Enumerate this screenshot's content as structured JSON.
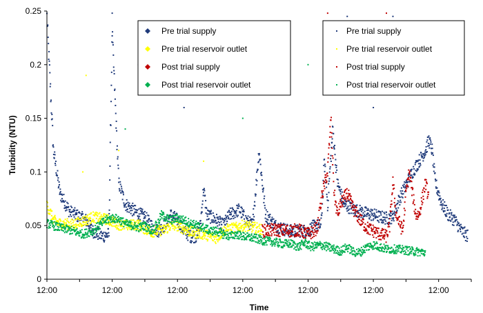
{
  "chart_data": {
    "type": "scatter",
    "title": "",
    "xlabel": "Time",
    "ylabel": "Turbidity (NTU)",
    "x_ticks": [
      "12:00",
      "12:00",
      "12:00",
      "12:00",
      "12:00",
      "12:00",
      "12:00"
    ],
    "x_range_days": [
      0,
      6.5
    ],
    "ylim": [
      0,
      0.25
    ],
    "y_ticks": [
      0,
      0.05,
      0.1,
      0.15,
      0.2,
      0.25
    ],
    "grid": false,
    "legends": [
      {
        "placement": "top-center",
        "marker": "diamond",
        "entries": [
          "Pre trial supply",
          "Pre trial reservoir outlet",
          "Post trial supply",
          "Post trial reservoir outlet"
        ]
      },
      {
        "placement": "top-right",
        "marker": "dot",
        "entries": [
          "Pre trial supply",
          "Pre trial reservoir outlet",
          "Post trial supply",
          "Post trial reservoir outlet"
        ]
      }
    ],
    "series": [
      {
        "name": "Pre trial supply",
        "color": "#1f3a7a",
        "spread": 0.006,
        "points": [
          [
            0,
            0.245
          ],
          [
            0.1,
            0.12
          ],
          [
            0.2,
            0.08
          ],
          [
            0.35,
            0.063
          ],
          [
            0.5,
            0.058
          ],
          [
            0.6,
            0.055
          ],
          [
            0.7,
            0.045
          ],
          [
            0.85,
            0.04
          ],
          [
            0.95,
            0.042
          ],
          [
            0.97,
            0.12
          ],
          [
            1.0,
            0.23
          ],
          [
            1.05,
            0.16
          ],
          [
            1.1,
            0.09
          ],
          [
            1.2,
            0.07
          ],
          [
            1.35,
            0.063
          ],
          [
            1.5,
            0.058
          ],
          [
            1.6,
            0.05
          ],
          [
            1.7,
            0.045
          ],
          [
            1.8,
            0.05
          ],
          [
            1.9,
            0.06
          ],
          [
            2.0,
            0.055
          ],
          [
            2.1,
            0.045
          ],
          [
            2.2,
            0.04
          ],
          [
            2.3,
            0.04
          ],
          [
            2.35,
            0.05
          ],
          [
            2.4,
            0.085
          ],
          [
            2.45,
            0.06
          ],
          [
            2.6,
            0.055
          ],
          [
            2.7,
            0.05
          ],
          [
            2.8,
            0.06
          ],
          [
            2.95,
            0.065
          ],
          [
            3.05,
            0.055
          ],
          [
            3.15,
            0.05
          ],
          [
            3.25,
            0.12
          ],
          [
            3.35,
            0.06
          ],
          [
            3.5,
            0.05
          ],
          [
            3.7,
            0.045
          ],
          [
            3.85,
            0.045
          ],
          [
            4.0,
            0.045
          ],
          [
            4.1,
            0.05
          ],
          [
            4.2,
            0.05
          ],
          [
            4.25,
            0.11
          ],
          [
            4.3,
            0.07
          ],
          [
            4.38,
            0.14
          ],
          [
            4.45,
            0.09
          ],
          [
            4.55,
            0.07
          ],
          [
            4.7,
            0.065
          ],
          [
            4.85,
            0.062
          ],
          [
            5.0,
            0.06
          ],
          [
            5.1,
            0.058
          ],
          [
            5.2,
            0.057
          ],
          [
            5.3,
            0.058
          ],
          [
            5.4,
            0.075
          ],
          [
            5.5,
            0.088
          ],
          [
            5.6,
            0.1
          ],
          [
            5.7,
            0.11
          ],
          [
            5.8,
            0.12
          ],
          [
            5.85,
            0.13
          ],
          [
            5.9,
            0.12
          ],
          [
            5.95,
            0.09
          ],
          [
            6.05,
            0.07
          ],
          [
            6.15,
            0.06
          ],
          [
            6.25,
            0.055
          ],
          [
            6.35,
            0.045
          ],
          [
            6.45,
            0.04
          ]
        ]
      },
      {
        "name": "Pre trial reservoir outlet",
        "color": "#ffff00",
        "spread": 0.005,
        "points": [
          [
            0,
            0.07
          ],
          [
            0.1,
            0.055
          ],
          [
            0.2,
            0.052
          ],
          [
            0.4,
            0.051
          ],
          [
            0.6,
            0.055
          ],
          [
            0.7,
            0.058
          ],
          [
            0.9,
            0.056
          ],
          [
            1.0,
            0.054
          ],
          [
            1.1,
            0.051
          ],
          [
            1.2,
            0.05
          ],
          [
            1.4,
            0.051
          ],
          [
            1.5,
            0.047
          ],
          [
            1.6,
            0.044
          ],
          [
            1.7,
            0.045
          ],
          [
            1.8,
            0.046
          ],
          [
            1.9,
            0.05
          ],
          [
            2.0,
            0.05
          ],
          [
            2.1,
            0.047
          ],
          [
            2.2,
            0.044
          ],
          [
            2.3,
            0.043
          ],
          [
            2.4,
            0.042
          ],
          [
            2.5,
            0.04
          ],
          [
            2.6,
            0.038
          ],
          [
            2.7,
            0.045
          ],
          [
            2.8,
            0.047
          ],
          [
            2.9,
            0.048
          ],
          [
            3.0,
            0.05
          ],
          [
            3.1,
            0.049
          ],
          [
            3.2,
            0.048
          ],
          [
            3.3,
            0.046
          ]
        ]
      },
      {
        "name": "Post trial supply",
        "color": "#c00000",
        "spread": 0.006,
        "points": [
          [
            3.3,
            0.045
          ],
          [
            3.5,
            0.046
          ],
          [
            3.7,
            0.045
          ],
          [
            3.85,
            0.046
          ],
          [
            4.0,
            0.042
          ],
          [
            4.1,
            0.045
          ],
          [
            4.15,
            0.05
          ],
          [
            4.22,
            0.08
          ],
          [
            4.3,
            0.1
          ],
          [
            4.35,
            0.15
          ],
          [
            4.4,
            0.08
          ],
          [
            4.45,
            0.06
          ],
          [
            4.5,
            0.07
          ],
          [
            4.6,
            0.08
          ],
          [
            4.7,
            0.065
          ],
          [
            4.8,
            0.055
          ],
          [
            4.9,
            0.048
          ],
          [
            5.0,
            0.045
          ],
          [
            5.1,
            0.042
          ],
          [
            5.2,
            0.04
          ],
          [
            5.25,
            0.05
          ],
          [
            5.3,
            0.09
          ],
          [
            5.35,
            0.06
          ],
          [
            5.45,
            0.045
          ],
          [
            5.5,
            0.08
          ],
          [
            5.55,
            0.1
          ],
          [
            5.6,
            0.08
          ],
          [
            5.65,
            0.06
          ],
          [
            5.7,
            0.06
          ],
          [
            5.75,
            0.075
          ],
          [
            5.8,
            0.09
          ],
          [
            5.85,
            0.075
          ]
        ]
      },
      {
        "name": "Post trial reservoir outlet",
        "color": "#00b050",
        "spread": 0.004,
        "points": [
          [
            0,
            0.052
          ],
          [
            0.2,
            0.048
          ],
          [
            0.4,
            0.045
          ],
          [
            0.55,
            0.042
          ],
          [
            0.7,
            0.045
          ],
          [
            0.8,
            0.05
          ],
          [
            0.9,
            0.055
          ],
          [
            1.0,
            0.057
          ],
          [
            1.1,
            0.056
          ],
          [
            1.2,
            0.052
          ],
          [
            1.3,
            0.05
          ],
          [
            1.4,
            0.048
          ],
          [
            1.5,
            0.05
          ],
          [
            1.6,
            0.045
          ],
          [
            1.7,
            0.052
          ],
          [
            1.75,
            0.06
          ],
          [
            1.8,
            0.058
          ],
          [
            1.9,
            0.055
          ],
          [
            2.0,
            0.057
          ],
          [
            2.1,
            0.055
          ],
          [
            2.2,
            0.052
          ],
          [
            2.3,
            0.05
          ],
          [
            2.4,
            0.048
          ],
          [
            2.5,
            0.045
          ],
          [
            2.6,
            0.045
          ],
          [
            2.7,
            0.042
          ],
          [
            2.8,
            0.04
          ],
          [
            2.9,
            0.042
          ],
          [
            3.0,
            0.04
          ],
          [
            3.1,
            0.039
          ],
          [
            3.2,
            0.038
          ],
          [
            3.3,
            0.036
          ],
          [
            3.45,
            0.035
          ],
          [
            3.6,
            0.033
          ],
          [
            3.75,
            0.033
          ],
          [
            3.85,
            0.03
          ],
          [
            3.95,
            0.034
          ],
          [
            4.05,
            0.03
          ],
          [
            4.2,
            0.032
          ],
          [
            4.35,
            0.029
          ],
          [
            4.5,
            0.026
          ],
          [
            4.6,
            0.03
          ],
          [
            4.7,
            0.025
          ],
          [
            4.8,
            0.025
          ],
          [
            4.9,
            0.03
          ],
          [
            5.0,
            0.032
          ],
          [
            5.1,
            0.03
          ],
          [
            5.2,
            0.028
          ],
          [
            5.35,
            0.028
          ],
          [
            5.5,
            0.027
          ],
          [
            5.6,
            0.026
          ],
          [
            5.8,
            0.025
          ]
        ]
      }
    ],
    "outliers": [
      {
        "series": 0,
        "x": 1.0,
        "y": 0.248
      },
      {
        "series": 0,
        "x": 1.4,
        "y": 0.2
      },
      {
        "series": 0,
        "x": 2.1,
        "y": 0.16
      },
      {
        "series": 0,
        "x": 3.1,
        "y": 0.19
      },
      {
        "series": 0,
        "x": 4.6,
        "y": 0.245
      },
      {
        "series": 0,
        "x": 5.0,
        "y": 0.16
      },
      {
        "series": 0,
        "x": 5.3,
        "y": 0.245
      },
      {
        "series": 0,
        "x": 5.55,
        "y": 0.2
      },
      {
        "series": 0,
        "x": 6.1,
        "y": 0.2
      },
      {
        "series": 1,
        "x": 0.6,
        "y": 0.19
      },
      {
        "series": 1,
        "x": 0.55,
        "y": 0.1
      },
      {
        "series": 1,
        "x": 1.1,
        "y": 0.12
      },
      {
        "series": 1,
        "x": 2.4,
        "y": 0.11
      },
      {
        "series": 2,
        "x": 4.3,
        "y": 0.248
      },
      {
        "series": 2,
        "x": 5.2,
        "y": 0.248
      },
      {
        "series": 3,
        "x": 1.2,
        "y": 0.14
      },
      {
        "series": 3,
        "x": 3.0,
        "y": 0.15
      },
      {
        "series": 3,
        "x": 4.0,
        "y": 0.2
      }
    ]
  }
}
